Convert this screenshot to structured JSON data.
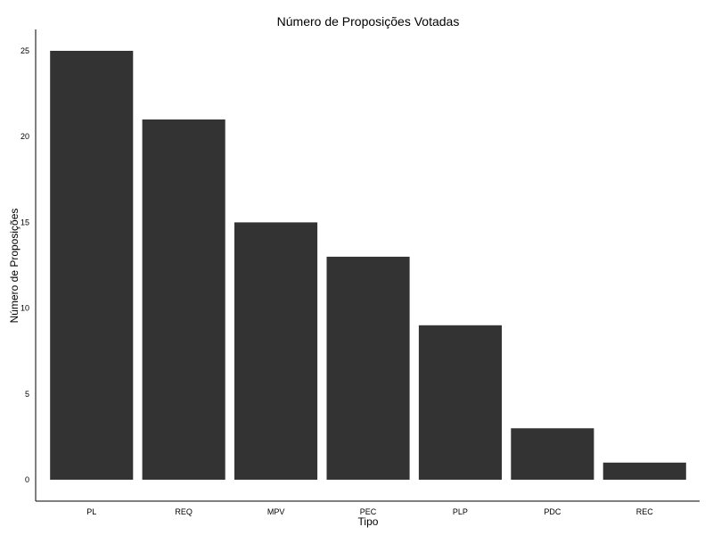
{
  "chart_data": {
    "type": "bar",
    "title": "Número de Proposições Votadas",
    "xlabel": "Tipo",
    "ylabel": "Número de Proposições",
    "categories": [
      "PL",
      "REQ",
      "MPV",
      "PEC",
      "PLP",
      "PDC",
      "REC"
    ],
    "values": [
      25,
      21,
      15,
      13,
      9,
      3,
      1
    ],
    "ylim": [
      0,
      25
    ],
    "yticks": [
      0,
      5,
      10,
      15,
      20,
      25
    ],
    "grid": false,
    "bar_color": "#333333"
  }
}
